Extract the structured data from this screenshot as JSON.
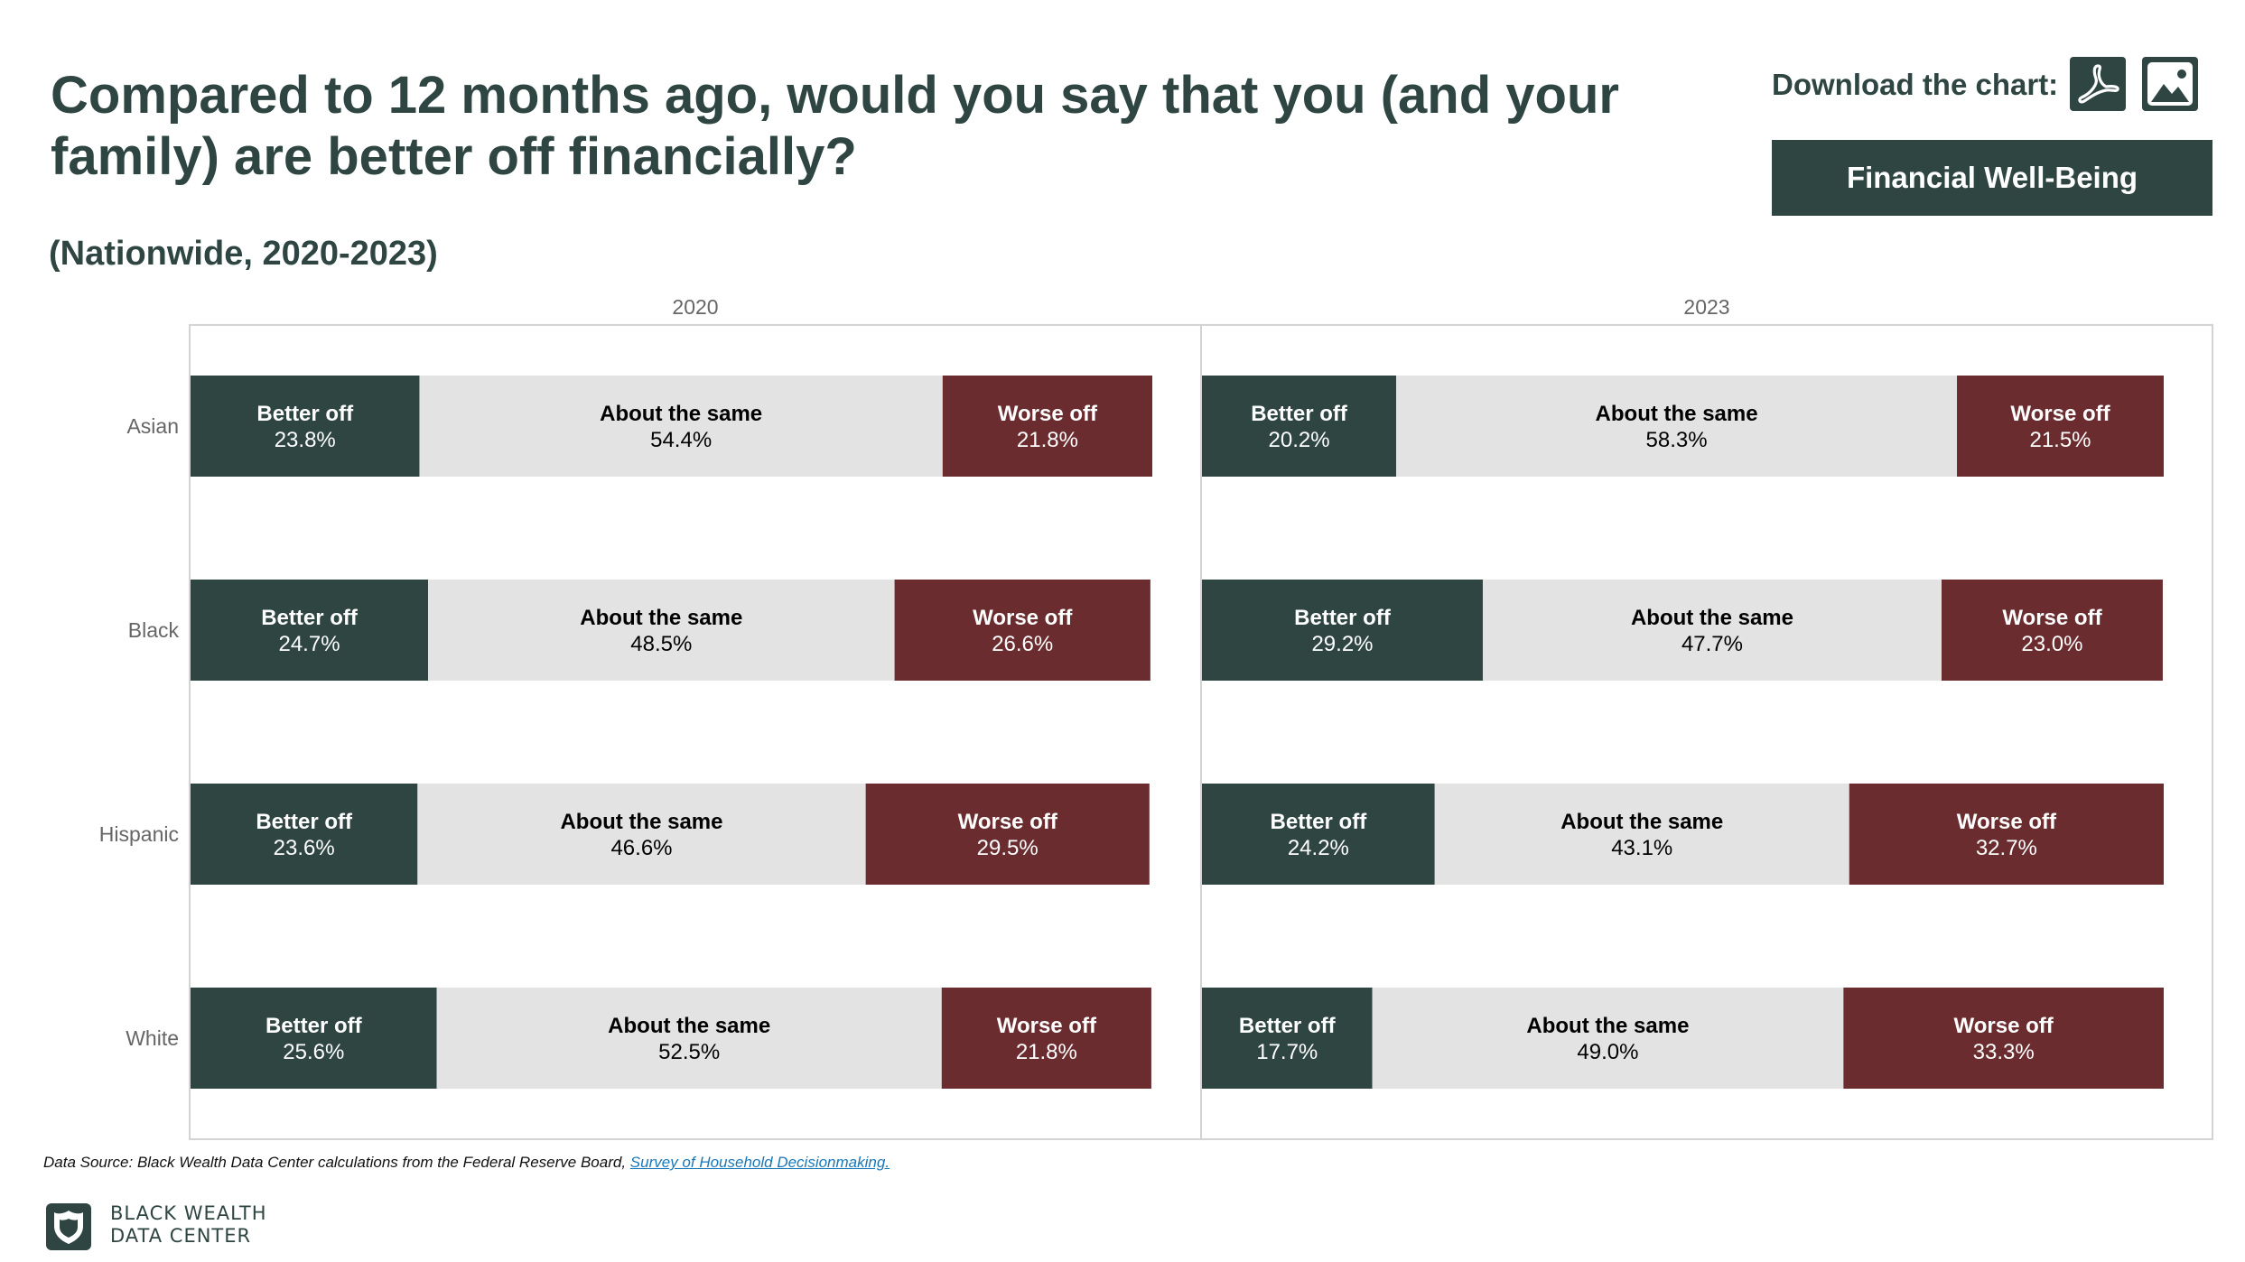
{
  "header": {
    "title": "Compared to 12 months ago, would you say that you (and your family) are better off financially?",
    "subtitle": "(Nationwide, 2020-2023)",
    "download_label": "Download the chart:",
    "download_icons": [
      "pdf-icon",
      "image-icon"
    ],
    "tag": "Financial Well-Being"
  },
  "colors": {
    "better": "#2e4542",
    "same": "#e3e3e3",
    "worse": "#6b2c2f",
    "text_dark": "#2e4542"
  },
  "chart_data": {
    "type": "bar",
    "orientation": "horizontal",
    "stacked": true,
    "percent": true,
    "categories": [
      "Asian",
      "Black",
      "Hispanic",
      "White"
    ],
    "segments": [
      "Better off",
      "About the same",
      "Worse off"
    ],
    "panels": [
      {
        "title": "2020",
        "series": [
          {
            "name": "Better off",
            "values": [
              23.8,
              24.7,
              23.6,
              25.6
            ]
          },
          {
            "name": "About the same",
            "values": [
              54.4,
              48.5,
              46.6,
              52.5
            ]
          },
          {
            "name": "Worse off",
            "values": [
              21.8,
              26.6,
              29.5,
              21.8
            ]
          }
        ]
      },
      {
        "title": "2023",
        "series": [
          {
            "name": "Better off",
            "values": [
              20.2,
              29.2,
              24.2,
              17.7
            ]
          },
          {
            "name": "About the same",
            "values": [
              58.3,
              47.7,
              43.1,
              49.0
            ]
          },
          {
            "name": "Worse off",
            "values": [
              21.5,
              23.0,
              32.7,
              33.3
            ]
          }
        ]
      }
    ],
    "value_format": "%",
    "decimals": 1,
    "gridlines": false,
    "legend": "none"
  },
  "footer": {
    "source_prefix": "Data Source: Black Wealth Data Center calculations from the Federal Reserve Board, ",
    "source_link": "Survey of Household Decisionmaking.",
    "logo_line1": "BLACK WEALTH",
    "logo_line2": "DATA CENTER",
    "logo_icon": "shield-icon"
  }
}
